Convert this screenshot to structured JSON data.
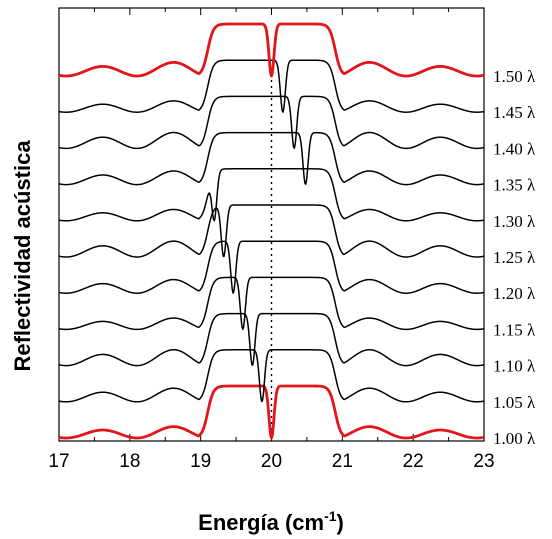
{
  "chart_data": {
    "type": "line",
    "xlabel": "Energía (cm⁻¹)",
    "ylabel": "Reflectividad acústica",
    "xlim": [
      17,
      23
    ],
    "x_ticks": [
      "17",
      "18",
      "19",
      "20",
      "21",
      "22",
      "23"
    ],
    "grid": false,
    "reference_line": {
      "x": 20,
      "style": "dotted"
    },
    "series": [
      {
        "name": "1.00 λ",
        "offset": 0.0,
        "color": "#e3151b",
        "highlight": true
      },
      {
        "name": "1.05 λ",
        "offset": 0.05,
        "color": "#000000",
        "highlight": false
      },
      {
        "name": "1.10 λ",
        "offset": 0.1,
        "color": "#000000",
        "highlight": false
      },
      {
        "name": "1.15 λ",
        "offset": 0.15,
        "color": "#000000",
        "highlight": false
      },
      {
        "name": "1.20 λ",
        "offset": 0.2,
        "color": "#000000",
        "highlight": false
      },
      {
        "name": "1.25 λ",
        "offset": 0.25,
        "color": "#000000",
        "highlight": false
      },
      {
        "name": "1.30 λ",
        "offset": 0.3,
        "color": "#000000",
        "highlight": false
      },
      {
        "name": "1.35 λ",
        "offset": 0.35,
        "color": "#000000",
        "highlight": false
      },
      {
        "name": "1.40 λ",
        "offset": 0.4,
        "color": "#000000",
        "highlight": false
      },
      {
        "name": "1.45 λ",
        "offset": 0.45,
        "color": "#000000",
        "highlight": false
      },
      {
        "name": "1.50 λ",
        "offset": 0.5,
        "color": "#e3151b",
        "highlight": true
      }
    ],
    "band": {
      "center": 20.0,
      "half_width": 0.9,
      "dip_center_at_offset_0": 20.0,
      "dip_shift_per_0_05": 0.16,
      "dip_width": 0.05
    }
  }
}
